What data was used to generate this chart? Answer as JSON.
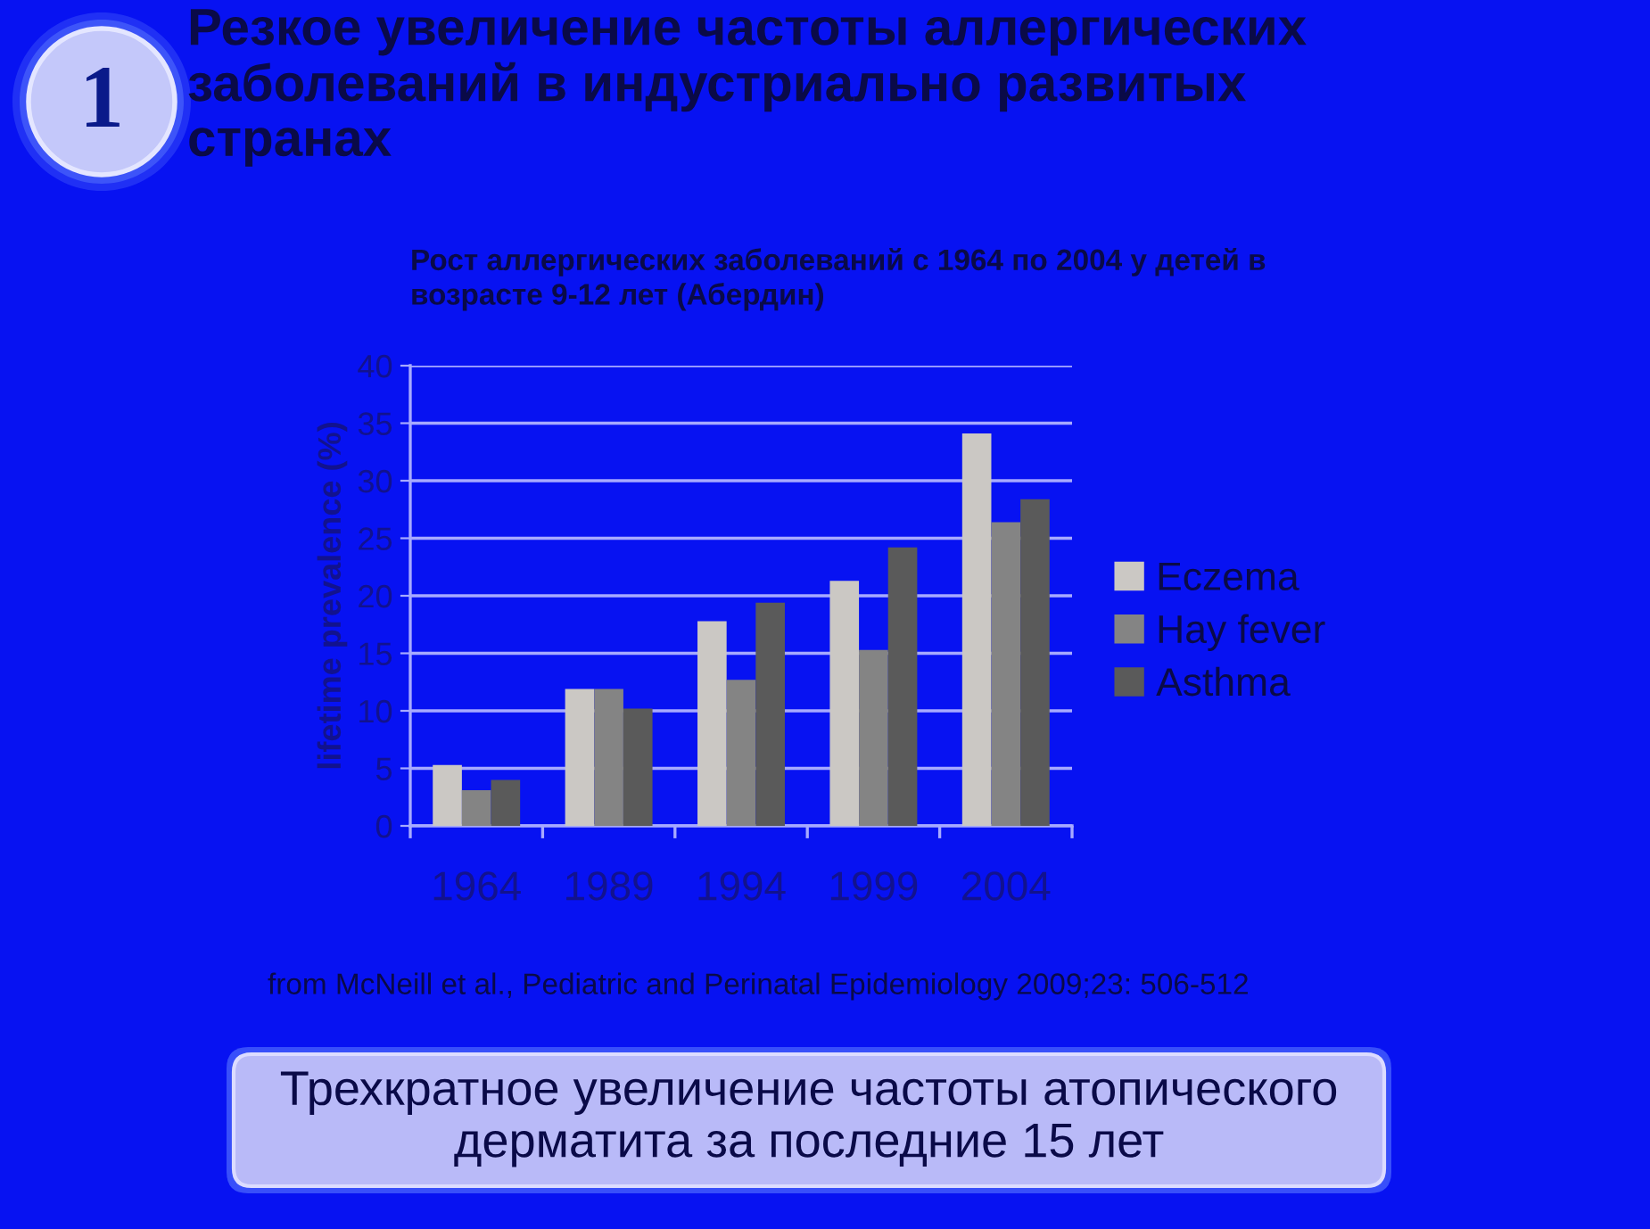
{
  "chart_data": {
    "type": "bar",
    "title": "Резкое увеличение частоты аллергических\nзаболеваний в индустриально развитых\nстранах",
    "subtitle": "Рост аллергических заболеваний с 1964 по 2004 у детей в\nвозрасте 9-12 лет (Абердин)",
    "ylabel": "lifetime prevalence (%)",
    "categories": [
      "1964",
      "1989",
      "1994",
      "1999",
      "2004"
    ],
    "series": [
      {
        "name": "Eczema",
        "color": "#cbc8c4",
        "values": [
          5.3,
          11.9,
          17.8,
          21.3,
          34.1
        ]
      },
      {
        "name": "Hay fever",
        "color": "#848484",
        "values": [
          3.1,
          11.9,
          12.7,
          15.3,
          26.4
        ]
      },
      {
        "name": "Asthma",
        "color": "#5a5a5a",
        "values": [
          4.0,
          10.2,
          19.4,
          24.2,
          28.4
        ]
      }
    ],
    "ylim": [
      0,
      40
    ],
    "yticks": [
      0,
      5,
      10,
      15,
      20,
      25,
      30,
      35,
      40
    ],
    "grid": "y",
    "legend": "right",
    "annotations": [
      "1",
      "from McNeill et al., Pediatric and Perinatal Epidemiology 2009;23: 506-512",
      "Трехкратное увеличение частоты атопического\nдерматита за последние 15 лет"
    ]
  }
}
